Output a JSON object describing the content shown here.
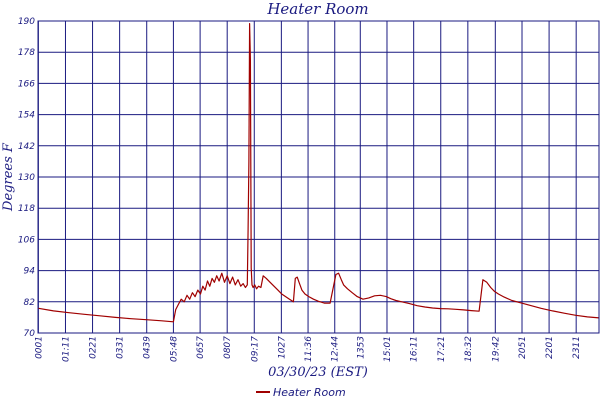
{
  "chart_data": {
    "type": "line",
    "title": "Heater Room",
    "xlabel": "03/30/23 (EST)",
    "ylabel": "Degrees F",
    "ylim": [
      70,
      190
    ],
    "yticks": [
      70,
      82,
      94,
      106,
      118,
      130,
      142,
      154,
      166,
      178,
      190
    ],
    "ytick_labels": [
      "70",
      "82",
      "94",
      "106",
      "118",
      "130",
      "142",
      "154",
      "166",
      "178",
      "190"
    ],
    "xlim": [
      0,
      1450
    ],
    "xticks": [
      1,
      71,
      141,
      211,
      281,
      350,
      419,
      489,
      559,
      629,
      698,
      767,
      833,
      902,
      971,
      1041,
      1111,
      1182,
      1251,
      1321,
      1391
    ],
    "xtick_labels": [
      "0001",
      "01:11",
      "0221",
      "0331",
      "0439",
      "05:48",
      "0657",
      "0807",
      "09:17",
      "1027",
      "11:36",
      "12:44",
      "1353",
      "15:01",
      "16:11",
      "17:21",
      "18:32",
      "19:42",
      "2051",
      "2201",
      "2311"
    ],
    "grid": true,
    "legend_position": "bottom-center",
    "colors": {
      "series": "#a00000",
      "axes": "#1a1a80",
      "grid": "#1a1a80"
    },
    "series": [
      {
        "name": "Heater Room",
        "x": [
          1,
          40,
          80,
          120,
          160,
          200,
          240,
          280,
          320,
          350,
          356,
          363,
          370,
          378,
          385,
          392,
          399,
          406,
          413,
          420,
          426,
          432,
          438,
          444,
          450,
          456,
          462,
          468,
          475,
          482,
          489,
          496,
          503,
          510,
          517,
          524,
          530,
          536,
          541,
          543,
          545,
          547,
          549,
          551,
          553,
          556,
          560,
          565,
          570,
          576,
          582,
          590,
          600,
          610,
          620,
          630,
          640,
          650,
          660,
          665,
          670,
          676,
          682,
          690,
          700,
          712,
          725,
          740,
          755,
          770,
          777,
          784,
          790,
          800,
          812,
          825,
          840,
          855,
          870,
          885,
          900,
          912,
          925,
          940,
          960,
          980,
          1000,
          1020,
          1040,
          1060,
          1080,
          1100,
          1120,
          1140,
          1150,
          1160,
          1170,
          1180,
          1190,
          1205,
          1225,
          1250,
          1275,
          1300,
          1330,
          1360,
          1390,
          1420,
          1450
        ],
        "values": [
          79.5,
          78.5,
          77.8,
          77.2,
          76.6,
          76.0,
          75.5,
          75.1,
          74.7,
          74.3,
          79.0,
          81.0,
          83.0,
          82.0,
          84.5,
          83.0,
          85.5,
          84.0,
          86.5,
          85.0,
          88.0,
          86.5,
          90.0,
          88.0,
          91.0,
          89.5,
          92.0,
          90.0,
          93.0,
          89.5,
          92.0,
          89.0,
          91.5,
          88.5,
          90.5,
          88.0,
          89.0,
          87.5,
          88.5,
          110.0,
          136.0,
          189.0,
          175.0,
          95.0,
          88.5,
          87.5,
          88.5,
          87.0,
          88.0,
          87.5,
          92.0,
          91.0,
          89.5,
          88.0,
          86.5,
          85.0,
          84.0,
          83.0,
          82.0,
          91.0,
          91.5,
          89.0,
          86.5,
          85.0,
          84.0,
          83.0,
          82.2,
          81.5,
          81.5,
          92.5,
          93.0,
          90.5,
          88.5,
          87.0,
          85.5,
          84.0,
          83.0,
          83.5,
          84.3,
          84.5,
          84.0,
          83.2,
          82.5,
          82.0,
          81.3,
          80.5,
          80.0,
          79.6,
          79.4,
          79.3,
          79.1,
          78.9,
          78.6,
          78.4,
          90.5,
          89.5,
          87.5,
          86.0,
          85.0,
          83.8,
          82.5,
          81.5,
          80.5,
          79.5,
          78.5,
          77.6,
          76.8,
          76.2,
          75.8
        ]
      }
    ]
  }
}
